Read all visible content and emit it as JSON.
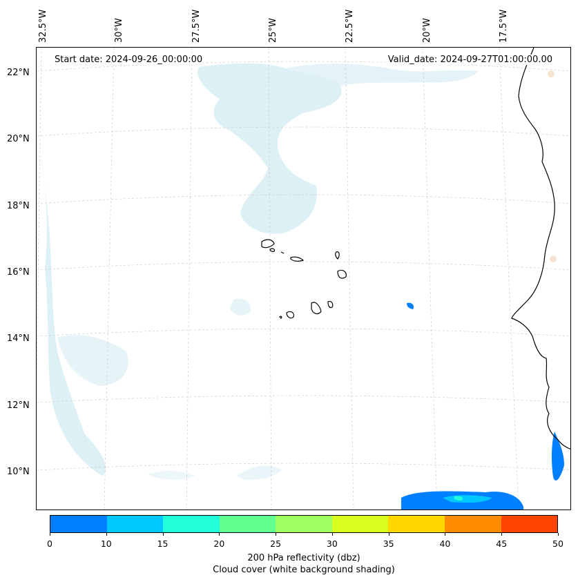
{
  "header": {
    "start_date": "Start date: 2024-09-26_00:00:00",
    "valid_date": "Valid_date: 2024-09-27T01:00:00.00"
  },
  "axes": {
    "lon_labels": [
      "32.5°W",
      "30°W",
      "27.5°W",
      "25°W",
      "22.5°W",
      "20°W",
      "17.5°W"
    ],
    "lat_labels": [
      "22°N",
      "20°N",
      "18°N",
      "16°N",
      "14°N",
      "12°N",
      "10°N"
    ]
  },
  "colorbar": {
    "ticks": [
      "0",
      "10",
      "15",
      "20",
      "25",
      "30",
      "35",
      "40",
      "45",
      "50"
    ],
    "colors": [
      "#0080ff",
      "#00c8ff",
      "#20ffd8",
      "#60ff90",
      "#a0ff60",
      "#d8ff20",
      "#ffd700",
      "#ff8c00",
      "#ff4500"
    ],
    "label": "200 hPa reflectivity (dbz)",
    "sublabel": "Cloud cover (white background shading)"
  },
  "map": {
    "land_color": "#ffffff",
    "coast_color": "#000000",
    "cloud_color": "#bfe3ee",
    "grid_color": "#cccccc"
  }
}
